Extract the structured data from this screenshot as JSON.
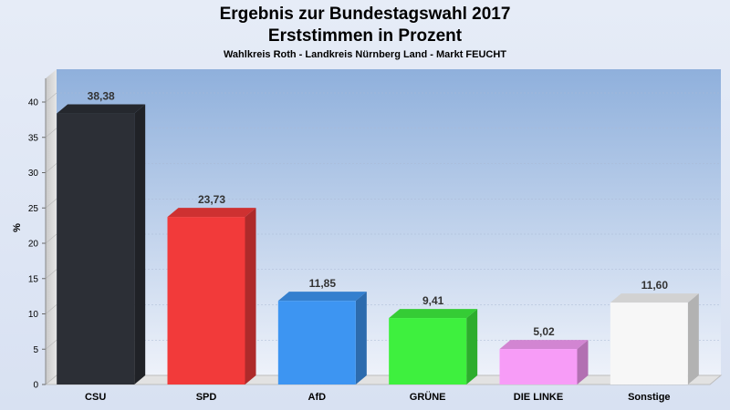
{
  "chart_data": {
    "type": "bar",
    "title": "Ergebnis zur Bundestagswahl 2017",
    "title_line2": "Erststimmen in Prozent",
    "subtitle": "Wahlkreis Roth - Landkreis Nürnberg Land - Markt FEUCHT",
    "ylabel": "%",
    "ylim": [
      0,
      40
    ],
    "yticks": [
      0,
      5,
      10,
      15,
      20,
      25,
      30,
      35,
      40
    ],
    "categories": [
      "CSU",
      "SPD",
      "AfD",
      "GRÜNE",
      "DIE LINKE",
      "Sonstige"
    ],
    "values": [
      38.38,
      23.73,
      11.85,
      9.41,
      5.02,
      11.6
    ],
    "value_labels": [
      "38,38",
      "23,73",
      "11,85",
      "9,41",
      "5,02",
      "11,60"
    ],
    "colors": [
      "#2c2f36",
      "#f23a3a",
      "#3d95f2",
      "#3ef03e",
      "#f79cf7",
      "#f7f7f7"
    ],
    "grid": true,
    "legend": "none"
  }
}
